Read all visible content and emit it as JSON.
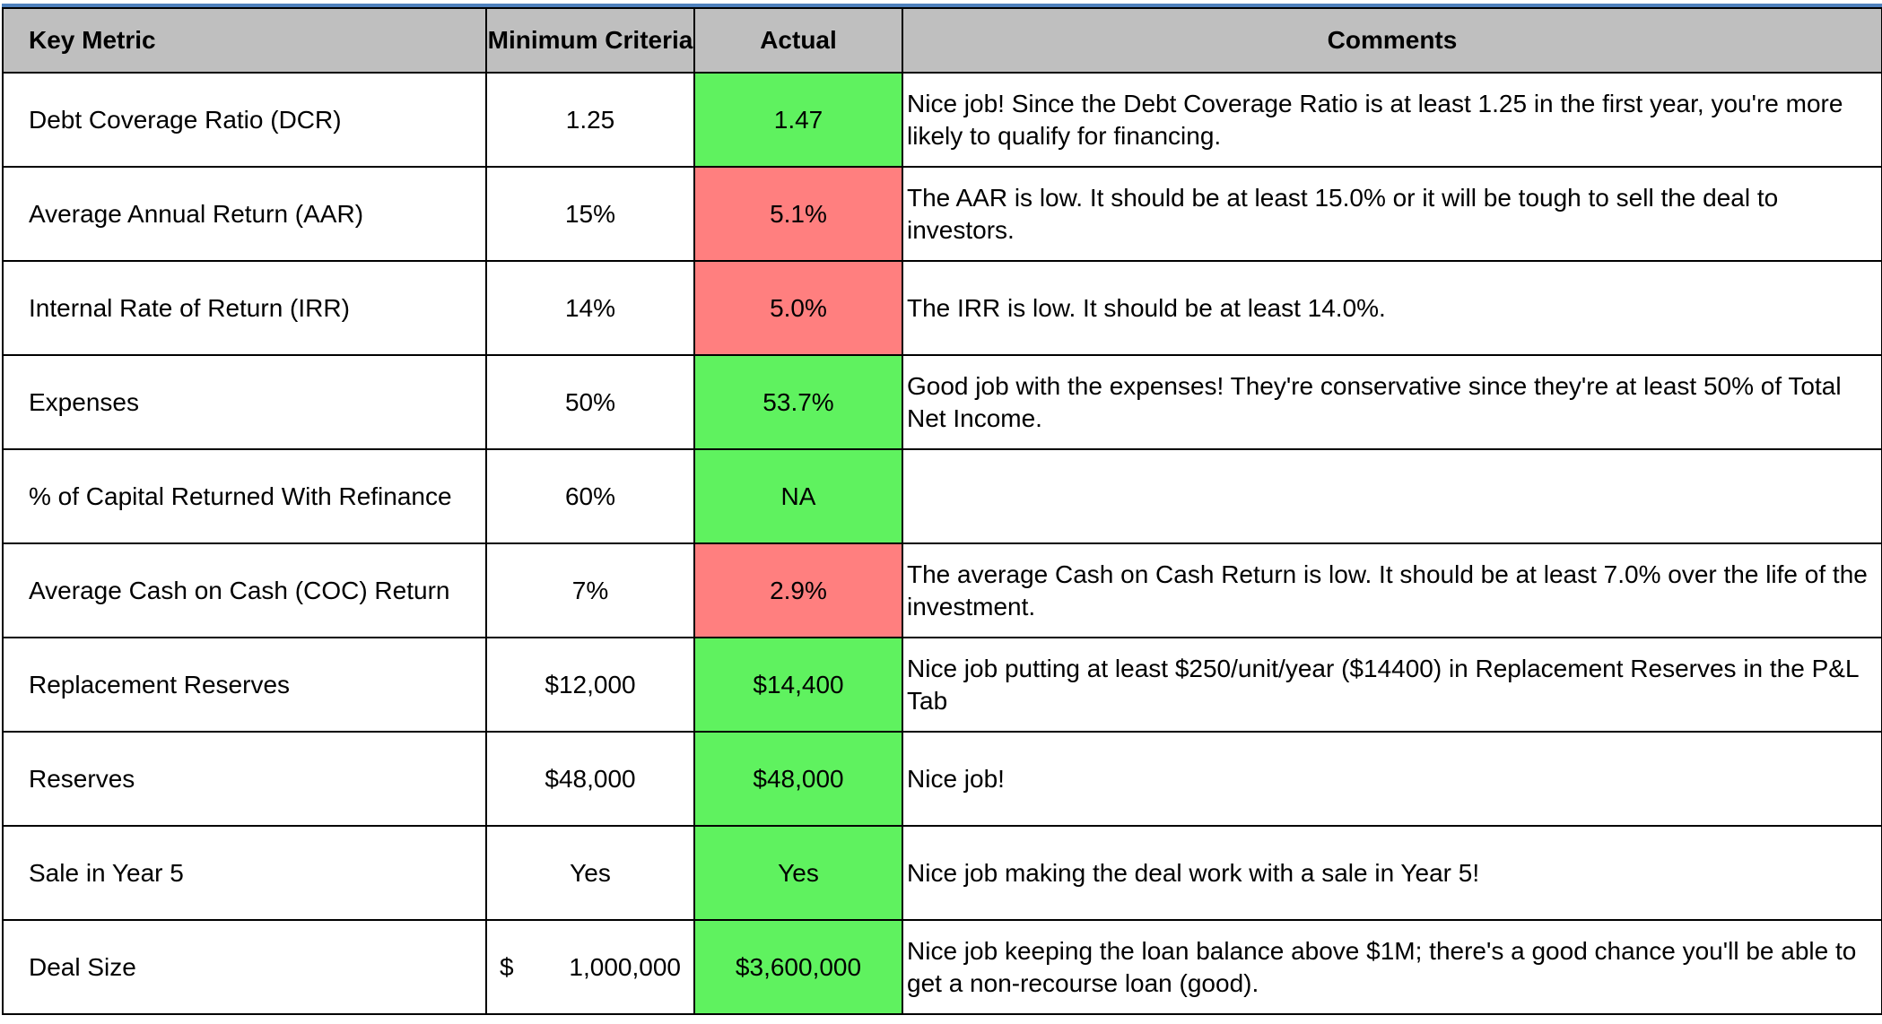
{
  "header": {
    "key_metric": "Key Metric",
    "minimum_criteria": "Minimum Criteria",
    "actual": "Actual",
    "comments": "Comments"
  },
  "colors": {
    "pass": "#5ff25f",
    "fail": "#ff7f7f",
    "header_bg": "#bfbfbf",
    "top_rule": "#4f81bd"
  },
  "rows": [
    {
      "metric": "Debt Coverage Ratio (DCR)",
      "minimum": "1.25",
      "actual": "1.47",
      "status": "pass",
      "comment": "Nice job! Since the Debt Coverage Ratio is at least 1.25 in the first year, you're more likely to qualify for financing."
    },
    {
      "metric": "Average Annual Return (AAR)",
      "minimum": "15%",
      "actual": "5.1%",
      "status": "fail",
      "comment": "The AAR is low. It should be at least 15.0% or it will be tough to sell the deal to investors."
    },
    {
      "metric": "Internal Rate of Return (IRR)",
      "minimum": "14%",
      "actual": "5.0%",
      "status": "fail",
      "comment": "The IRR is low. It should be at least 14.0%."
    },
    {
      "metric": "Expenses",
      "minimum": "50%",
      "actual": "53.7%",
      "status": "pass",
      "comment": "Good job with the expenses! They're conservative since they're at least 50% of Total Net Income."
    },
    {
      "metric": "% of Capital Returned With Refinance",
      "minimum": "60%",
      "actual": "NA",
      "status": "pass",
      "comment": ""
    },
    {
      "metric": "Average Cash on Cash (COC) Return",
      "minimum": "7%",
      "actual": "2.9%",
      "status": "fail",
      "comment": "The average Cash on Cash Return  is low. It should be at least 7.0% over the life of the investment."
    },
    {
      "metric": "Replacement Reserves",
      "minimum": "$12,000",
      "actual": "$14,400",
      "status": "pass",
      "comment": "Nice job putting at least $250/unit/year ($14400) in Replacement Reserves in the P&L Tab"
    },
    {
      "metric": "Reserves",
      "minimum": "$48,000",
      "actual": "$48,000",
      "status": "pass",
      "comment": "Nice job!"
    },
    {
      "metric": "Sale in Year 5",
      "minimum": "Yes",
      "actual": "Yes",
      "status": "pass",
      "comment": "Nice job making the deal work with a sale in Year 5!"
    },
    {
      "metric": "Deal Size",
      "minimum_currency": "$",
      "minimum_amount": "1,000,000",
      "actual": "$3,600,000",
      "status": "pass",
      "comment": "Nice job keeping the loan balance above $1M; there's a good chance you'll be able to get a non-recourse loan (good)."
    }
  ]
}
